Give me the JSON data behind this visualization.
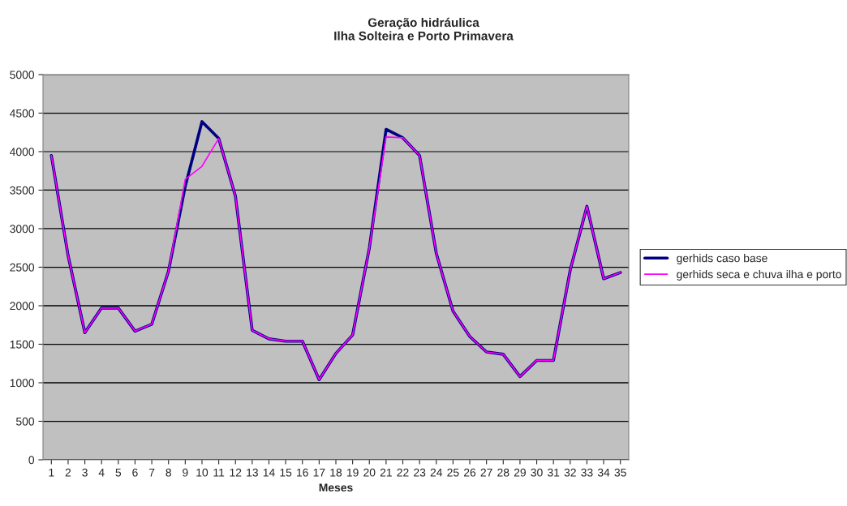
{
  "chart_data": {
    "type": "line",
    "title": "Geração hidráulica\nIlha Solteira e Porto Primavera",
    "xlabel": "Meses",
    "categories": [
      "1",
      "2",
      "3",
      "4",
      "5",
      "6",
      "7",
      "8",
      "9",
      "10",
      "11",
      "12",
      "13",
      "14",
      "15",
      "16",
      "17",
      "18",
      "19",
      "20",
      "21",
      "22",
      "23",
      "24",
      "25",
      "26",
      "27",
      "28",
      "29",
      "30",
      "31",
      "32",
      "33",
      "34",
      "35"
    ],
    "series": [
      {
        "name": "gerhids caso base",
        "color": "#000080",
        "values": [
          3950,
          2650,
          1650,
          1970,
          1970,
          1670,
          1760,
          2450,
          3550,
          4390,
          4170,
          3420,
          1680,
          1570,
          1540,
          1540,
          1040,
          1380,
          1620,
          2750,
          4290,
          4180,
          3950,
          2680,
          1930,
          1600,
          1400,
          1370,
          1080,
          1290,
          1290,
          2460,
          3290,
          2350,
          2430
        ]
      },
      {
        "name": "gerhids seca e chuva ilha e porto",
        "color": "#ff00ff",
        "values": [
          3950,
          2650,
          1650,
          1970,
          1970,
          1670,
          1760,
          2450,
          3640,
          3810,
          4170,
          3420,
          1680,
          1570,
          1540,
          1540,
          1040,
          1380,
          1620,
          2750,
          4190,
          4180,
          3950,
          2680,
          1930,
          1600,
          1400,
          1370,
          1080,
          1290,
          1290,
          2460,
          3290,
          2350,
          2430
        ]
      }
    ],
    "ylim": [
      0,
      5000
    ],
    "yticks": [
      0,
      500,
      1000,
      1500,
      2000,
      2500,
      3000,
      3500,
      4000,
      4500,
      5000
    ],
    "grid": "y",
    "legend": "right",
    "marker": "none",
    "line_style": "solid"
  }
}
